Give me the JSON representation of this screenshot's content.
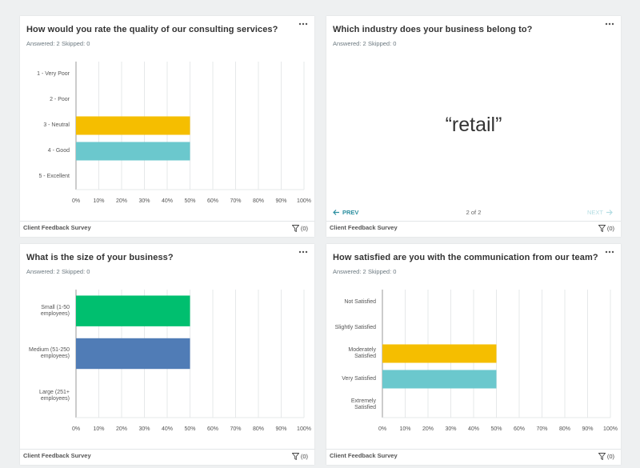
{
  "cards": [
    {
      "title": "How would you rate the quality of our consulting services?",
      "answered": "Answered: 2",
      "skipped": "Skipped: 0",
      "footer": "Client Feedback Survey",
      "filter": "(0)"
    },
    {
      "title": "Which industry does your business belong to?",
      "answered": "Answered: 2",
      "skipped": "Skipped: 0",
      "footer": "Client Feedback Survey",
      "filter": "(0)"
    },
    {
      "title": "What is the size of your business?",
      "answered": "Answered: 2",
      "skipped": "Skipped: 0",
      "footer": "Client Feedback Survey",
      "filter": "(0)"
    },
    {
      "title": "How satisfied are you with the communication from our team?",
      "answered": "Answered: 2",
      "skipped": "Skipped: 0",
      "footer": "Client Feedback Survey",
      "filter": "(0)"
    }
  ],
  "text_card": {
    "quote": "“retail”",
    "prev": "PREV",
    "pager": "2 of 2",
    "next": "NEXT"
  },
  "chart_data": [
    {
      "type": "bar",
      "orientation": "horizontal",
      "categories": [
        "1 - Very Poor",
        "2 - Poor",
        "3 - Neutral",
        "4 - Good",
        "5 - Excellent"
      ],
      "values": [
        0,
        0,
        50,
        50,
        0
      ],
      "colors": [
        "#f5be00",
        "#f5be00",
        "#f5be00",
        "#6bc8cd",
        "#6bc8cd"
      ],
      "xlim": [
        0,
        100
      ],
      "xticks": [
        {
          "value": 0,
          "label": "0%"
        },
        {
          "value": 10,
          "label": "10%"
        },
        {
          "value": 20,
          "label": "20%"
        },
        {
          "value": 30,
          "label": "30%"
        },
        {
          "value": 40,
          "label": "40%"
        },
        {
          "value": 50,
          "label": "50%"
        },
        {
          "value": 60,
          "label": "60%"
        },
        {
          "value": 70,
          "label": "70%"
        },
        {
          "value": 80,
          "label": "80%"
        },
        {
          "value": 90,
          "label": "90%"
        },
        {
          "value": 100,
          "label": "100%"
        }
      ],
      "grid": true
    },
    {
      "type": "bar",
      "orientation": "horizontal",
      "categories": [
        "Small (1-50 employees)",
        "Medium (51-250 employees)",
        "Large (251+ employees)"
      ],
      "values": [
        50,
        50,
        0
      ],
      "colors": [
        "#00bf6f",
        "#507cb6",
        "#507cb6"
      ],
      "xlim": [
        0,
        100
      ],
      "xticks": [
        {
          "value": 0,
          "label": "0%"
        },
        {
          "value": 10,
          "label": "10%"
        },
        {
          "value": 20,
          "label": "20%"
        },
        {
          "value": 30,
          "label": "30%"
        },
        {
          "value": 40,
          "label": "40%"
        },
        {
          "value": 50,
          "label": "50%"
        },
        {
          "value": 60,
          "label": "60%"
        },
        {
          "value": 70,
          "label": "70%"
        },
        {
          "value": 80,
          "label": "80%"
        },
        {
          "value": 90,
          "label": "90%"
        },
        {
          "value": 100,
          "label": "100%"
        }
      ],
      "grid": true
    },
    {
      "type": "bar",
      "orientation": "horizontal",
      "categories": [
        "Not Satisfied",
        "Slightly Satisfied",
        "Moderately Satisfied",
        "Very Satisfied",
        "Extremely Satisfied"
      ],
      "values": [
        0,
        0,
        50,
        50,
        0
      ],
      "colors": [
        "#f5be00",
        "#f5be00",
        "#f5be00",
        "#6bc8cd",
        "#6bc8cd"
      ],
      "xlim": [
        0,
        100
      ],
      "xticks": [
        {
          "value": 0,
          "label": "0%"
        },
        {
          "value": 10,
          "label": "10%"
        },
        {
          "value": 20,
          "label": "20%"
        },
        {
          "value": 30,
          "label": "30%"
        },
        {
          "value": 40,
          "label": "40%"
        },
        {
          "value": 50,
          "label": "50%"
        },
        {
          "value": 60,
          "label": "60%"
        },
        {
          "value": 70,
          "label": "70%"
        },
        {
          "value": 80,
          "label": "80%"
        },
        {
          "value": 90,
          "label": "90%"
        },
        {
          "value": 100,
          "label": "100%"
        }
      ],
      "grid": true
    }
  ]
}
